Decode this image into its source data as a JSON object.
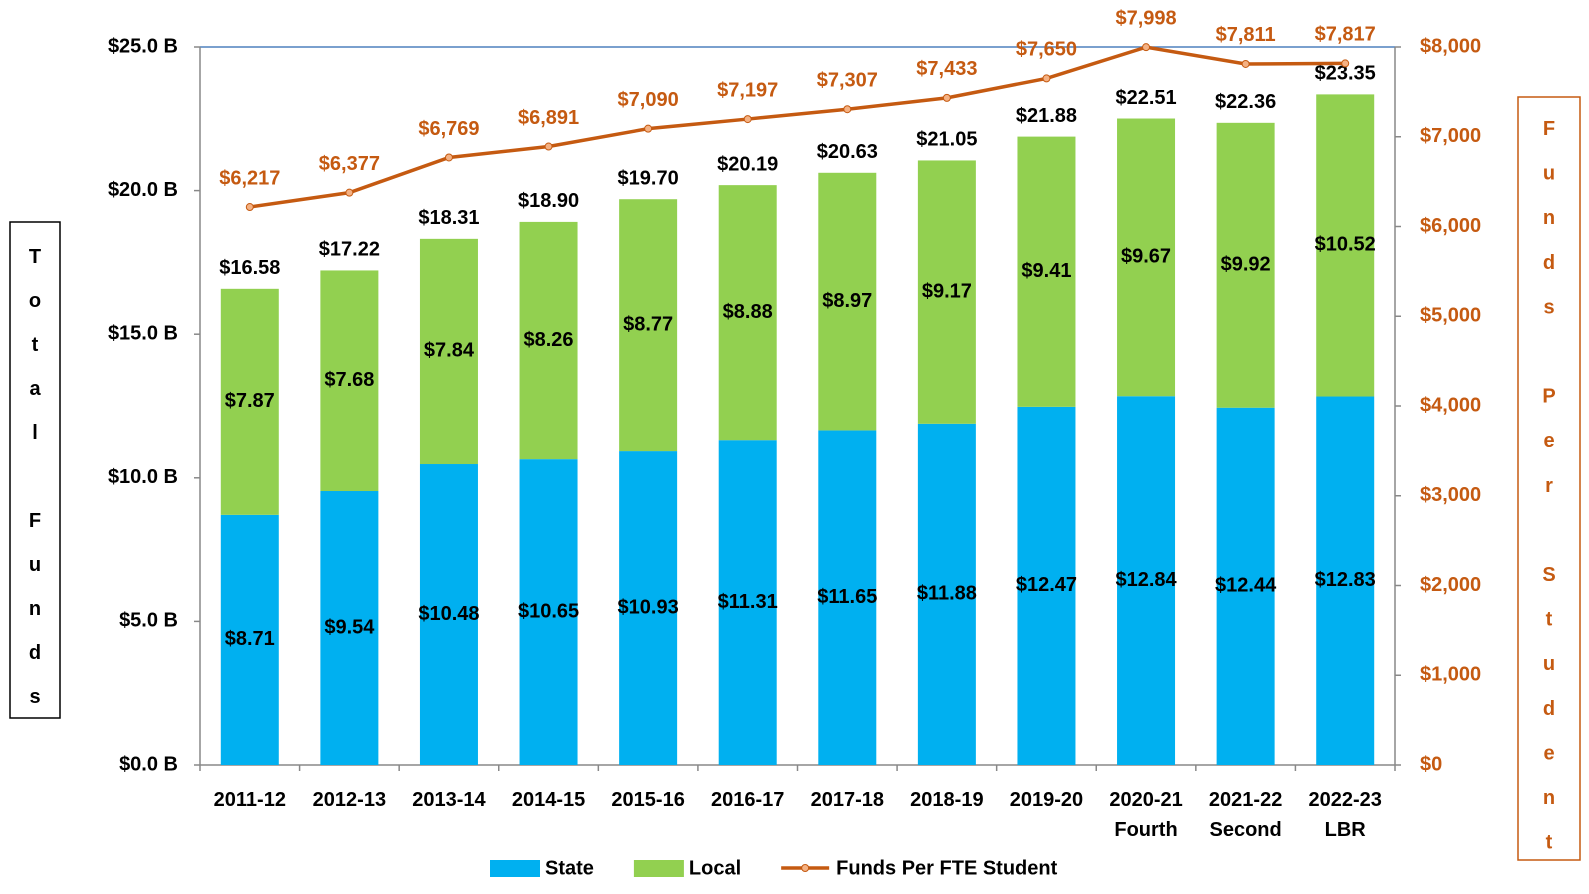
{
  "chart_data": {
    "type": "bar",
    "stacked": true,
    "categories": [
      "2011-12",
      "2012-13",
      "2013-14",
      "2014-15",
      "2015-16",
      "2016-17",
      "2017-18",
      "2018-19",
      "2019-20",
      "2020-21\nFourth",
      "2021-22\nSecond",
      "2022-23\nLBR"
    ],
    "series": [
      {
        "name": "State",
        "color": "#00b0f0",
        "type": "bar",
        "values": [
          8.71,
          9.54,
          10.48,
          10.65,
          10.93,
          11.31,
          11.65,
          11.88,
          12.47,
          12.84,
          12.44,
          12.83
        ],
        "value_labels": [
          "$8.71",
          "$9.54",
          "$10.48",
          "$10.65",
          "$10.93",
          "$11.31",
          "$11.65",
          "$11.88",
          "$12.47",
          "$12.84",
          "$12.44",
          "$12.83"
        ]
      },
      {
        "name": "Local",
        "color": "#92d050",
        "type": "bar",
        "values": [
          7.87,
          7.68,
          7.84,
          8.26,
          8.77,
          8.88,
          8.97,
          9.17,
          9.41,
          9.67,
          9.92,
          10.52
        ],
        "value_labels": [
          "$7.87",
          "$7.68",
          "$7.84",
          "$8.26",
          "$8.77",
          "$8.88",
          "$8.97",
          "$9.17",
          "$9.41",
          "$9.67",
          "$9.92",
          "$10.52"
        ]
      },
      {
        "name": "Funds Per FTE Student",
        "color": "#c55a11",
        "type": "line",
        "axis": "y2",
        "values": [
          6217,
          6377,
          6769,
          6891,
          7090,
          7197,
          7307,
          7433,
          7650,
          7998,
          7811,
          7817
        ],
        "value_labels": [
          "$6,217",
          "$6,377",
          "$6,769",
          "$6,891",
          "$7,090",
          "$7,197",
          "$7,307",
          "$7,433",
          "$7,650",
          "$7,998",
          "$7,811",
          "$7,817"
        ]
      }
    ],
    "total_labels": [
      "$16.58",
      "$17.22",
      "$18.31",
      "$18.90",
      "$19.70",
      "$20.19",
      "$20.63",
      "$21.05",
      "$21.88",
      "$22.51",
      "$22.36",
      "$23.35"
    ],
    "y_label": "Total Funds",
    "y2_label": "Funds Per Student",
    "ylim": [
      0,
      25
    ],
    "yticks": [
      {
        "value": 0,
        "label": "$0.0 B"
      },
      {
        "value": 5,
        "label": "$5.0 B"
      },
      {
        "value": 10,
        "label": "$10.0 B"
      },
      {
        "value": 15,
        "label": "$15.0 B"
      },
      {
        "value": 20,
        "label": "$20.0 B"
      },
      {
        "value": 25,
        "label": "$25.0 B"
      }
    ],
    "y2lim": [
      0,
      8000
    ],
    "y2ticks": [
      {
        "value": 0,
        "label": "$0"
      },
      {
        "value": 1000,
        "label": "$1,000"
      },
      {
        "value": 2000,
        "label": "$2,000"
      },
      {
        "value": 3000,
        "label": "$3,000"
      },
      {
        "value": 4000,
        "label": "$4,000"
      },
      {
        "value": 5000,
        "label": "$5,000"
      },
      {
        "value": 6000,
        "label": "$6,000"
      },
      {
        "value": 7000,
        "label": "$7,000"
      },
      {
        "value": 8000,
        "label": "$8,000"
      }
    ],
    "legend": "bottom"
  }
}
